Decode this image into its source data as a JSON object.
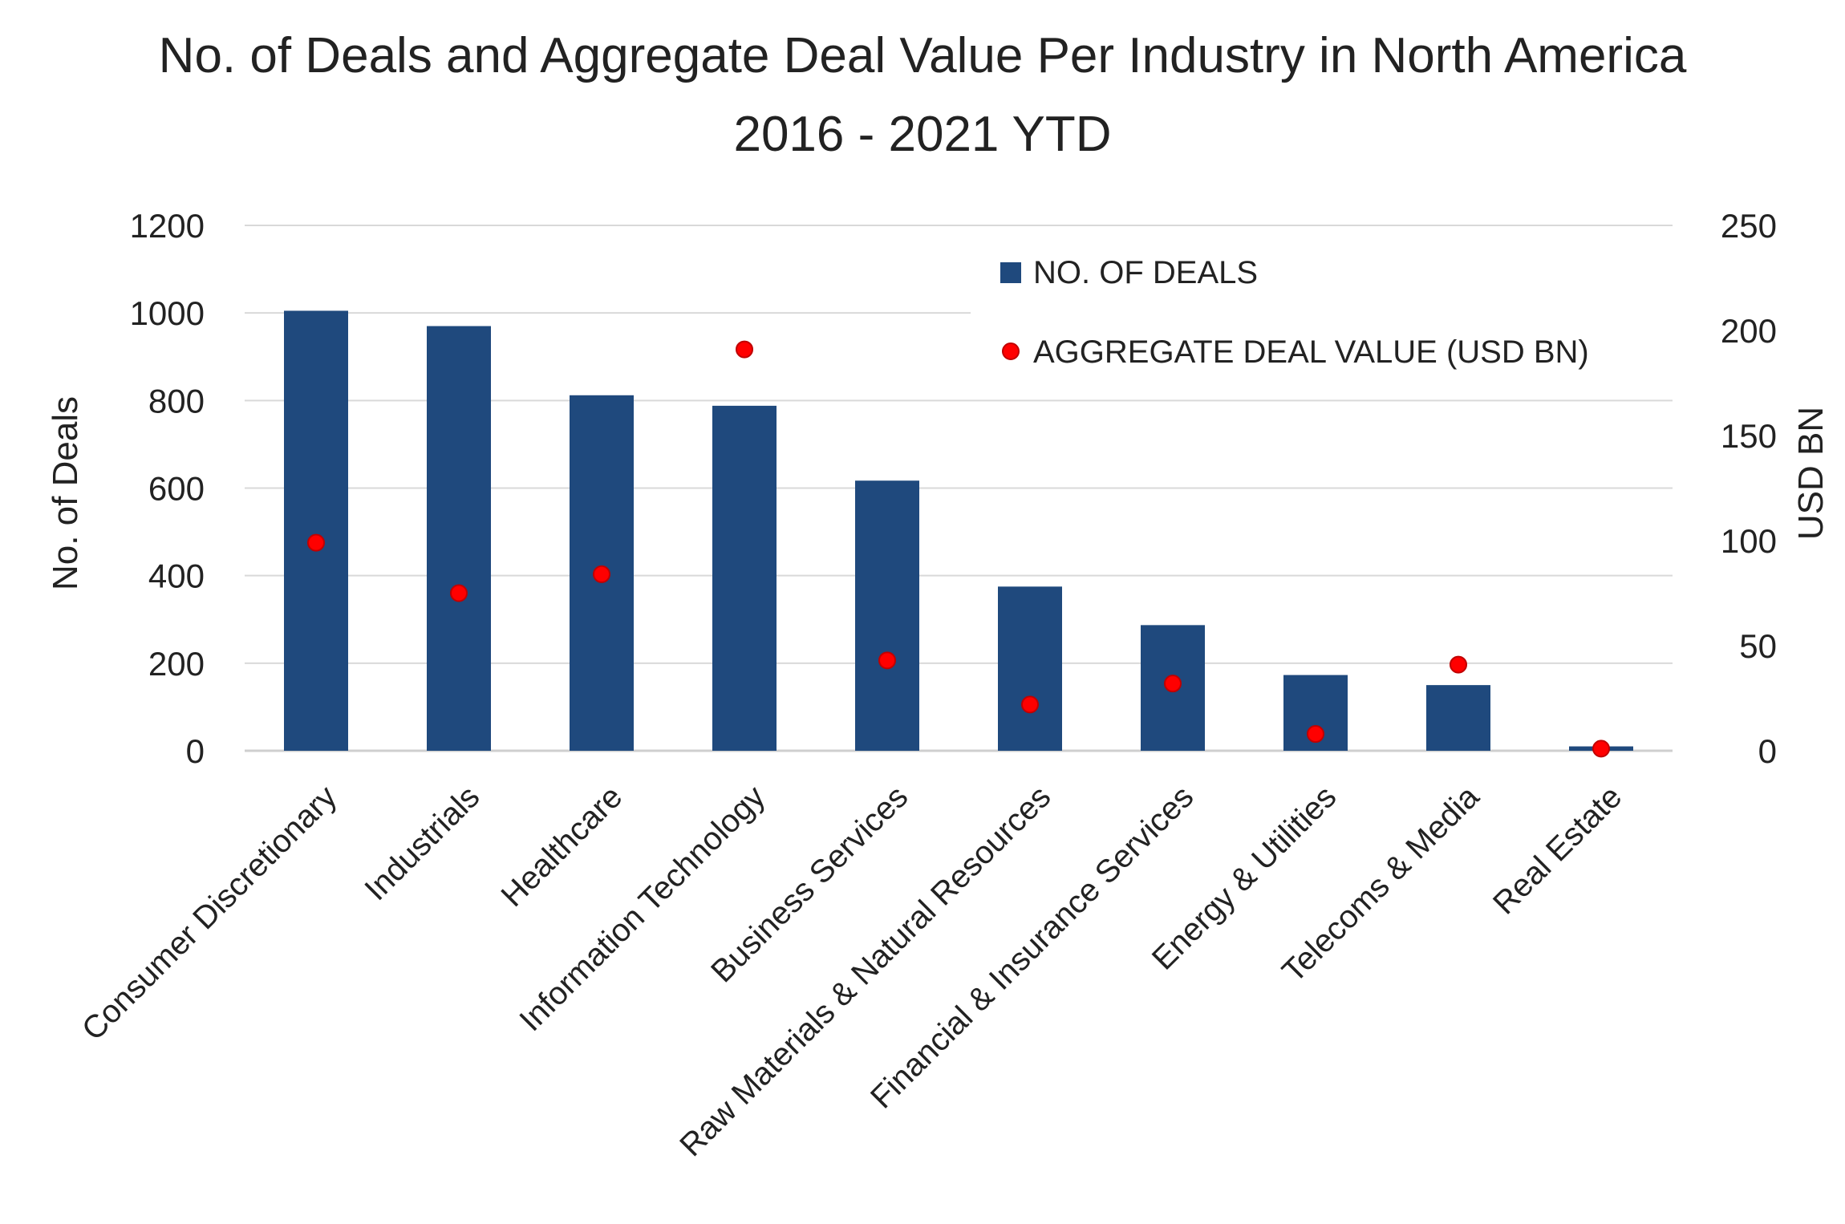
{
  "chart_data": {
    "type": "bar",
    "title": "No. of Deals and Aggregate Deal Value Per Industry in North America",
    "subtitle": "2016 - 2021 YTD",
    "ylabel": "No. of Deals",
    "y2label": "USD BN",
    "ylim": [
      0,
      1200
    ],
    "y2lim": [
      0,
      250
    ],
    "yticks": [
      "0",
      "200",
      "400",
      "600",
      "800",
      "1000",
      "1200"
    ],
    "y2ticks": [
      "0",
      "50",
      "100",
      "150",
      "200",
      "250"
    ],
    "grid": true,
    "legend_position": "top-right",
    "categories": [
      "Consumer Discretionary",
      "Industrials",
      "Healthcare",
      "Information Technology",
      "Business Services",
      "Raw Materials & Natural Resources",
      "Financial & Insurance Services",
      "Energy & Utilities",
      "Telecoms & Media",
      "Real Estate"
    ],
    "series": [
      {
        "name": "NO. OF DEALS",
        "type": "bar",
        "axis": "left",
        "color": "#1f497d",
        "values": [
          1005,
          970,
          812,
          788,
          617,
          375,
          287,
          173,
          150,
          10
        ]
      },
      {
        "name": "AGGREGATE DEAL VALUE (USD BN)",
        "type": "scatter",
        "axis": "right",
        "color": "#ff0000",
        "values": [
          99,
          75,
          84,
          191,
          43,
          22,
          32,
          8,
          41,
          1
        ]
      }
    ]
  }
}
